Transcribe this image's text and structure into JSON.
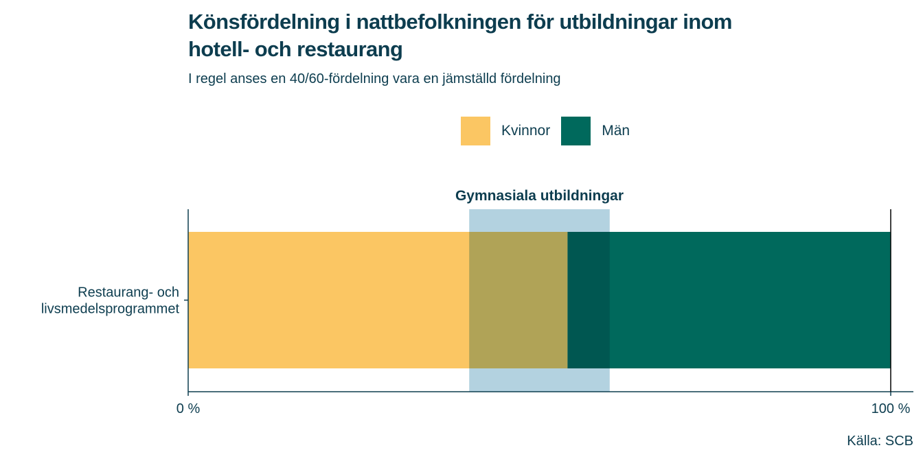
{
  "header": {
    "title": "Könsfördelning i nattbefolkningen för utbildningar inom hotell- och restaurang",
    "subtitle": "I regel anses en 40/60-fördelning vara en jämställd fördelning"
  },
  "legend": {
    "items": [
      {
        "label": "Kvinnor",
        "color": "#fbc663"
      },
      {
        "label": "Män",
        "color": "#00695c"
      }
    ]
  },
  "source": "Källa: SCB",
  "chart_data": {
    "type": "bar",
    "orientation": "horizontal",
    "stacked": true,
    "categories": [
      "Restaurang- och livsmedelsprogrammet"
    ],
    "category_labels": [
      [
        "Restaurang- och",
        "livsmedelsprogrammet"
      ]
    ],
    "series": [
      {
        "name": "Kvinnor",
        "values": [
          54
        ],
        "color": "#fbc663"
      },
      {
        "name": "Män",
        "values": [
          46
        ],
        "color": "#00695c"
      }
    ],
    "xlim": [
      0,
      100
    ],
    "tick_labels": [
      {
        "value": 0,
        "label": "0 %"
      },
      {
        "value": 100,
        "label": "100 %"
      }
    ],
    "reference_band": {
      "label": "Gymnasiala utbildningar",
      "from": 40,
      "to": 60,
      "color": "#a9ccdc"
    },
    "title": "Könsfördelning i nattbefolkningen för utbildningar inom hotell- och restaurang",
    "subtitle": "I regel anses en 40/60-fördelning vara en jämställd fördelning",
    "xlabel": "",
    "ylabel": "",
    "legend_position": "top"
  }
}
